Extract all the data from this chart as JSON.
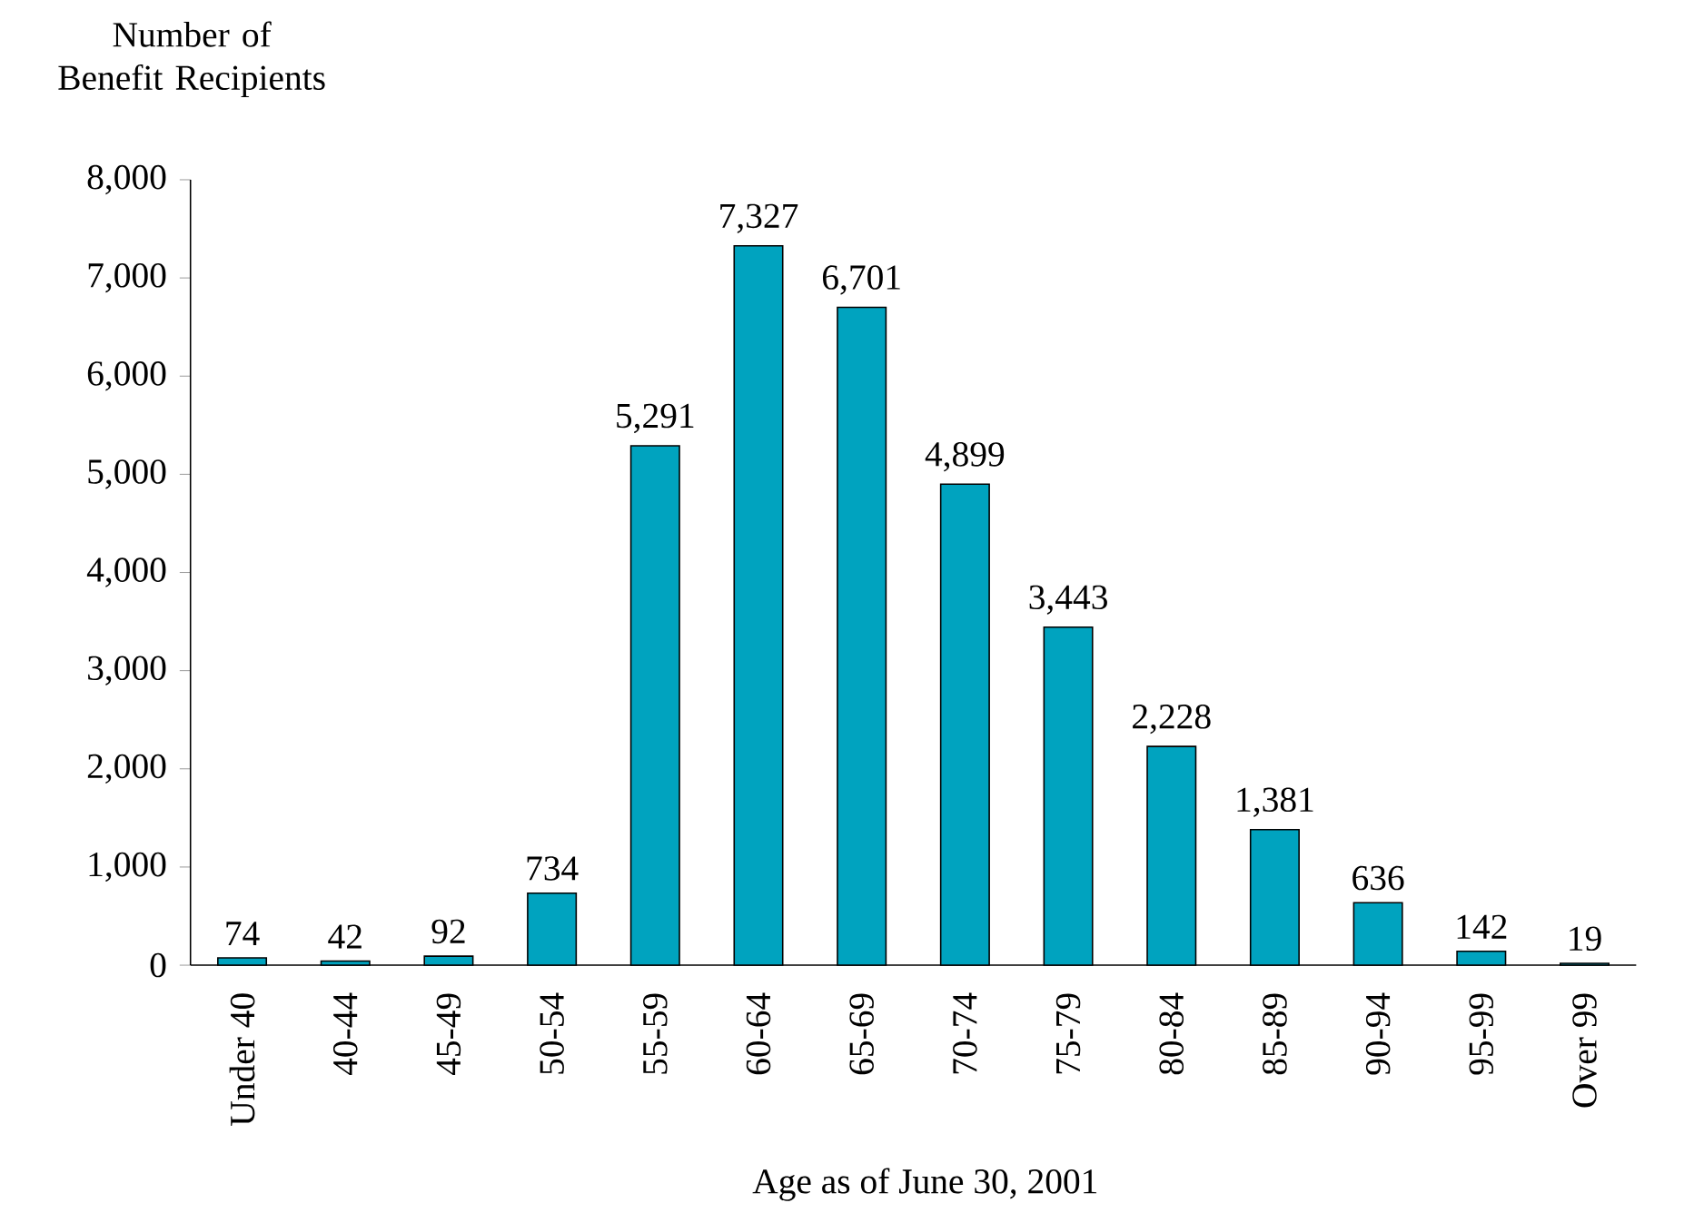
{
  "chart_data": {
    "type": "bar",
    "ylabel": "Number of Benefit Recipients",
    "xlabel": "Age as of June 30, 2001",
    "categories": [
      "Under 40",
      "40-44",
      "45-49",
      "50-54",
      "55-59",
      "60-64",
      "65-69",
      "70-74",
      "75-79",
      "80-84",
      "85-89",
      "90-94",
      "95-99",
      "Over 99"
    ],
    "values": [
      74,
      42,
      92,
      734,
      5291,
      7327,
      6701,
      4899,
      3443,
      2228,
      1381,
      636,
      142,
      19
    ],
    "value_labels": [
      "74",
      "42",
      "92",
      "734",
      "5,291",
      "7,327",
      "6,701",
      "4,899",
      "3,443",
      "2,228",
      "1,381",
      "636",
      "142",
      "19"
    ],
    "color": "#00a3bf",
    "ylim": [
      0,
      8000
    ],
    "yticks": [
      0,
      {
        "value": 1000,
        "label": "1,000"
      },
      {
        "value": 2000,
        "label": "2,000"
      },
      {
        "value": 3000,
        "label": "3,000"
      },
      {
        "value": 4000,
        "label": "4,000"
      },
      {
        "value": 5000,
        "label": "5,000"
      },
      {
        "value": 6000,
        "label": "6,000"
      },
      {
        "value": 7000,
        "label": "7,000"
      },
      {
        "value": 8000,
        "label": "8,000"
      }
    ],
    "data_labels": false
  }
}
